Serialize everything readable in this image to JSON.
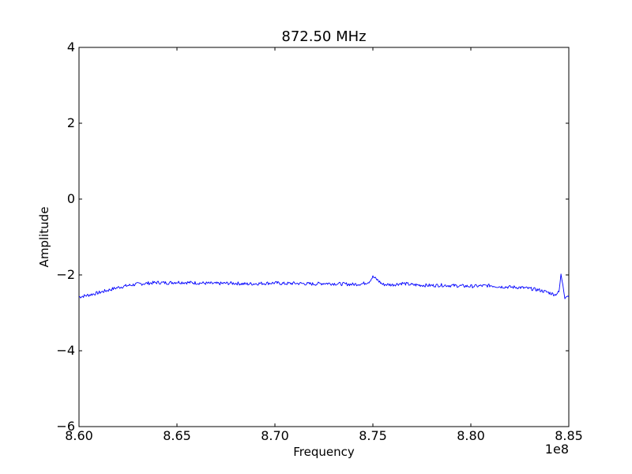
{
  "chart_data": {
    "type": "line",
    "title": "872.50 MHz",
    "xlabel": "Frequency",
    "ylabel": "Amplitude",
    "x_offset_label": "1e8",
    "xlim": [
      8.6,
      8.85
    ],
    "ylim": [
      -6,
      4
    ],
    "x_ticks": [
      8.6,
      8.65,
      8.7,
      8.75,
      8.8,
      8.85
    ],
    "x_tick_labels": [
      "8.60",
      "8.65",
      "8.70",
      "8.75",
      "8.80",
      "8.85"
    ],
    "y_ticks": [
      -6,
      -4,
      -2,
      0,
      2,
      4
    ],
    "y_tick_labels": [
      "−6",
      "−4",
      "−2",
      "0",
      "2",
      "4"
    ],
    "grid": false,
    "series": [
      {
        "color": "#0000ff",
        "x": [
          8.6,
          8.605,
          8.61,
          8.615,
          8.62,
          8.625,
          8.63,
          8.635,
          8.64,
          8.645,
          8.65,
          8.655,
          8.66,
          8.665,
          8.67,
          8.675,
          8.68,
          8.685,
          8.69,
          8.695,
          8.7,
          8.705,
          8.71,
          8.715,
          8.72,
          8.725,
          8.73,
          8.735,
          8.74,
          8.745,
          8.748,
          8.75,
          8.752,
          8.755,
          8.76,
          8.765,
          8.77,
          8.775,
          8.78,
          8.785,
          8.79,
          8.795,
          8.8,
          8.805,
          8.81,
          8.815,
          8.82,
          8.825,
          8.83,
          8.835,
          8.84,
          8.843,
          8.845,
          8.846,
          8.847,
          8.848,
          8.849,
          8.85
        ],
        "y": [
          -2.58,
          -2.53,
          -2.47,
          -2.4,
          -2.33,
          -2.28,
          -2.24,
          -2.22,
          -2.2,
          -2.21,
          -2.19,
          -2.2,
          -2.21,
          -2.22,
          -2.23,
          -2.22,
          -2.22,
          -2.24,
          -2.23,
          -2.22,
          -2.21,
          -2.23,
          -2.22,
          -2.23,
          -2.24,
          -2.22,
          -2.23,
          -2.24,
          -2.25,
          -2.23,
          -2.18,
          -2.05,
          -2.12,
          -2.25,
          -2.26,
          -2.22,
          -2.26,
          -2.27,
          -2.28,
          -2.27,
          -2.28,
          -2.29,
          -2.3,
          -2.29,
          -2.28,
          -2.31,
          -2.32,
          -2.33,
          -2.36,
          -2.4,
          -2.47,
          -2.52,
          -2.45,
          -2.0,
          -2.25,
          -2.6,
          -2.55,
          -2.58
        ]
      }
    ]
  }
}
